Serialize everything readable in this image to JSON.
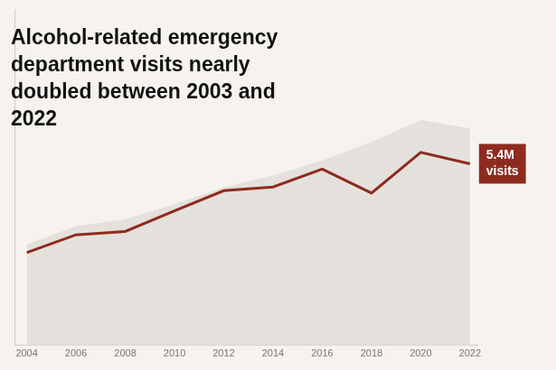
{
  "chart_data": {
    "type": "line",
    "title": "Alcohol-related emergency department visits nearly doubled between 2003 and 2022",
    "x": [
      2004,
      2006,
      2008,
      2010,
      2012,
      2014,
      2016,
      2018,
      2020,
      2022
    ],
    "series": [
      {
        "type": "area",
        "color": "#e4e1dc",
        "values": [
          3.0,
          3.55,
          3.75,
          4.2,
          4.7,
          5.05,
          5.5,
          6.05,
          6.7,
          6.45
        ]
      },
      {
        "type": "line",
        "color": "#8e2b1f",
        "values": [
          2.76,
          3.29,
          3.39,
          4.0,
          4.6,
          4.71,
          5.24,
          4.53,
          5.74,
          5.4
        ]
      }
    ],
    "xlim": [
      2003.5,
      2022.3
    ],
    "xticks": [
      2004,
      2006,
      2008,
      2010,
      2012,
      2014,
      2016,
      2018,
      2020,
      2022
    ],
    "ylim": [
      0,
      10
    ],
    "tick_labels": "x",
    "grid": false,
    "annotations": [
      {
        "x": 2022,
        "y": 5.4,
        "text": "5.4M visits"
      }
    ]
  }
}
